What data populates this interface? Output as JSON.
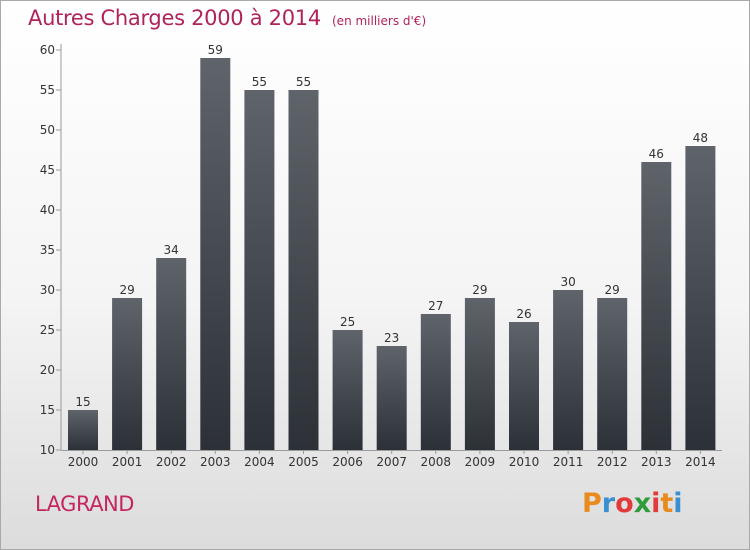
{
  "header": {
    "title": "Autres Charges 2000 à 2014",
    "subtitle": "(en milliers d'€)"
  },
  "footer": {
    "commune": "LAGRAND",
    "logo_letters": [
      "P",
      "r",
      "o",
      "x",
      "i",
      "t",
      "i"
    ],
    "logo_colors": [
      "#e88b1c",
      "#3a8fd0",
      "#e23a3a",
      "#2f9b3b",
      "#e23a3a",
      "#e88b1c",
      "#3a8fd0"
    ]
  },
  "chart_data": {
    "type": "bar",
    "title": "Autres Charges 2000 à 2014",
    "subtitle": "(en milliers d'€)",
    "categories": [
      "2000",
      "2001",
      "2002",
      "2003",
      "2004",
      "2005",
      "2006",
      "2007",
      "2008",
      "2009",
      "2010",
      "2011",
      "2012",
      "2013",
      "2014"
    ],
    "values": [
      15,
      29,
      34,
      59,
      55,
      55,
      25,
      23,
      27,
      29,
      26,
      30,
      29,
      46,
      48
    ],
    "ylim": [
      10,
      60
    ],
    "yticks": [
      10,
      15,
      20,
      25,
      30,
      35,
      40,
      45,
      50,
      55,
      60
    ],
    "grid": false,
    "bar_color_top": "#5f646b",
    "bar_color_bottom": "#2c3037"
  }
}
